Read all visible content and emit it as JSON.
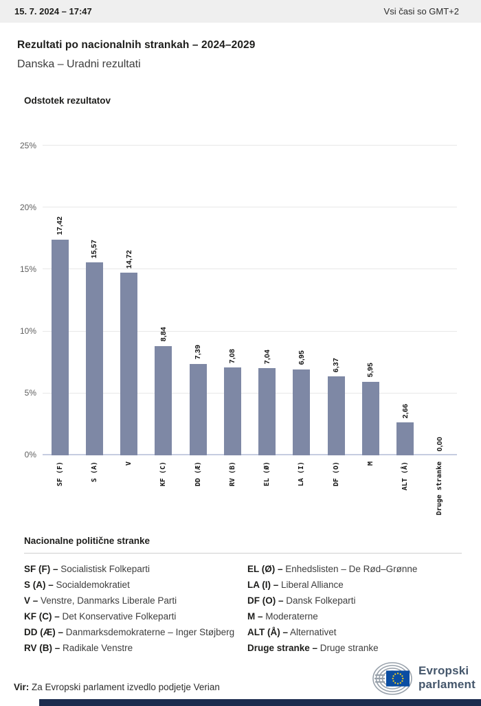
{
  "topbar": {
    "datetime": "15. 7. 2024 – 17:47",
    "timezone": "Vsi časi so GMT+2"
  },
  "page": {
    "title": "Rezultati po nacionalnih strankah – 2024–2029",
    "subtitle": "Danska – Uradni rezultati"
  },
  "chart_data": {
    "type": "bar",
    "title": "Odstotek rezultatov",
    "categories": [
      "SF (F)",
      "S (A)",
      "V",
      "KF (C)",
      "DD (Æ)",
      "RV (B)",
      "EL (Ø)",
      "LA (I)",
      "DF (O)",
      "M",
      "ALT (Å)",
      "Druge stranke"
    ],
    "values": [
      17.42,
      15.57,
      14.72,
      8.84,
      7.39,
      7.08,
      7.04,
      6.95,
      6.37,
      5.95,
      2.66,
      0.0
    ],
    "value_labels": [
      "17,42",
      "15,57",
      "14,72",
      "8,84",
      "7,39",
      "7,08",
      "7,04",
      "6,95",
      "6,37",
      "5,95",
      "2,66",
      "0,00"
    ],
    "xlabel": "",
    "ylabel": "",
    "ylim": [
      0,
      25
    ],
    "ytick_values": [
      0,
      5,
      10,
      15,
      20,
      25
    ],
    "ytick_labels": [
      "0%",
      "5%",
      "10%",
      "15%",
      "20%",
      "25%"
    ],
    "grid": true,
    "legend_position": "none",
    "bar_color": "#7e88a5"
  },
  "parties": {
    "heading": "Nacionalne politične stranke",
    "columns": [
      [
        {
          "abbr": "SF (F) –",
          "name": "Socialistisk Folkeparti"
        },
        {
          "abbr": "S (A) –",
          "name": "Socialdemokratiet"
        },
        {
          "abbr": "V –",
          "name": "Venstre, Danmarks Liberale Parti"
        },
        {
          "abbr": "KF (C) –",
          "name": "Det Konservative Folkeparti"
        },
        {
          "abbr": "DD (Æ) –",
          "name": "Danmarksdemokraterne – Inger Støjberg"
        },
        {
          "abbr": "RV (B) –",
          "name": "Radikale Venstre"
        }
      ],
      [
        {
          "abbr": "EL (Ø) –",
          "name": "Enhedslisten – De Rød–Grønne"
        },
        {
          "abbr": "LA (I) –",
          "name": "Liberal Alliance"
        },
        {
          "abbr": "DF (O) –",
          "name": "Dansk Folkeparti"
        },
        {
          "abbr": "M –",
          "name": "Moderaterne"
        },
        {
          "abbr": "ALT (Å) –",
          "name": "Alternativet"
        },
        {
          "abbr": "Druge stranke –",
          "name": "Druge stranke"
        }
      ]
    ]
  },
  "footer": {
    "source_label": "Vir:",
    "source_text": "Za Evropski parlament izvedlo podjetje Verian",
    "logo_line1": "Evropski",
    "logo_line2": "parlament"
  },
  "colors": {
    "bar": "#7e88a5",
    "topbar_bg": "#efefef",
    "grid": "#e8e8e8",
    "axis": "#c6cce0",
    "logo_text": "#44566b",
    "flag_blue": "#0a4da2",
    "star_yellow": "#ffd617",
    "bottom_bar": "#1c2c4e"
  }
}
